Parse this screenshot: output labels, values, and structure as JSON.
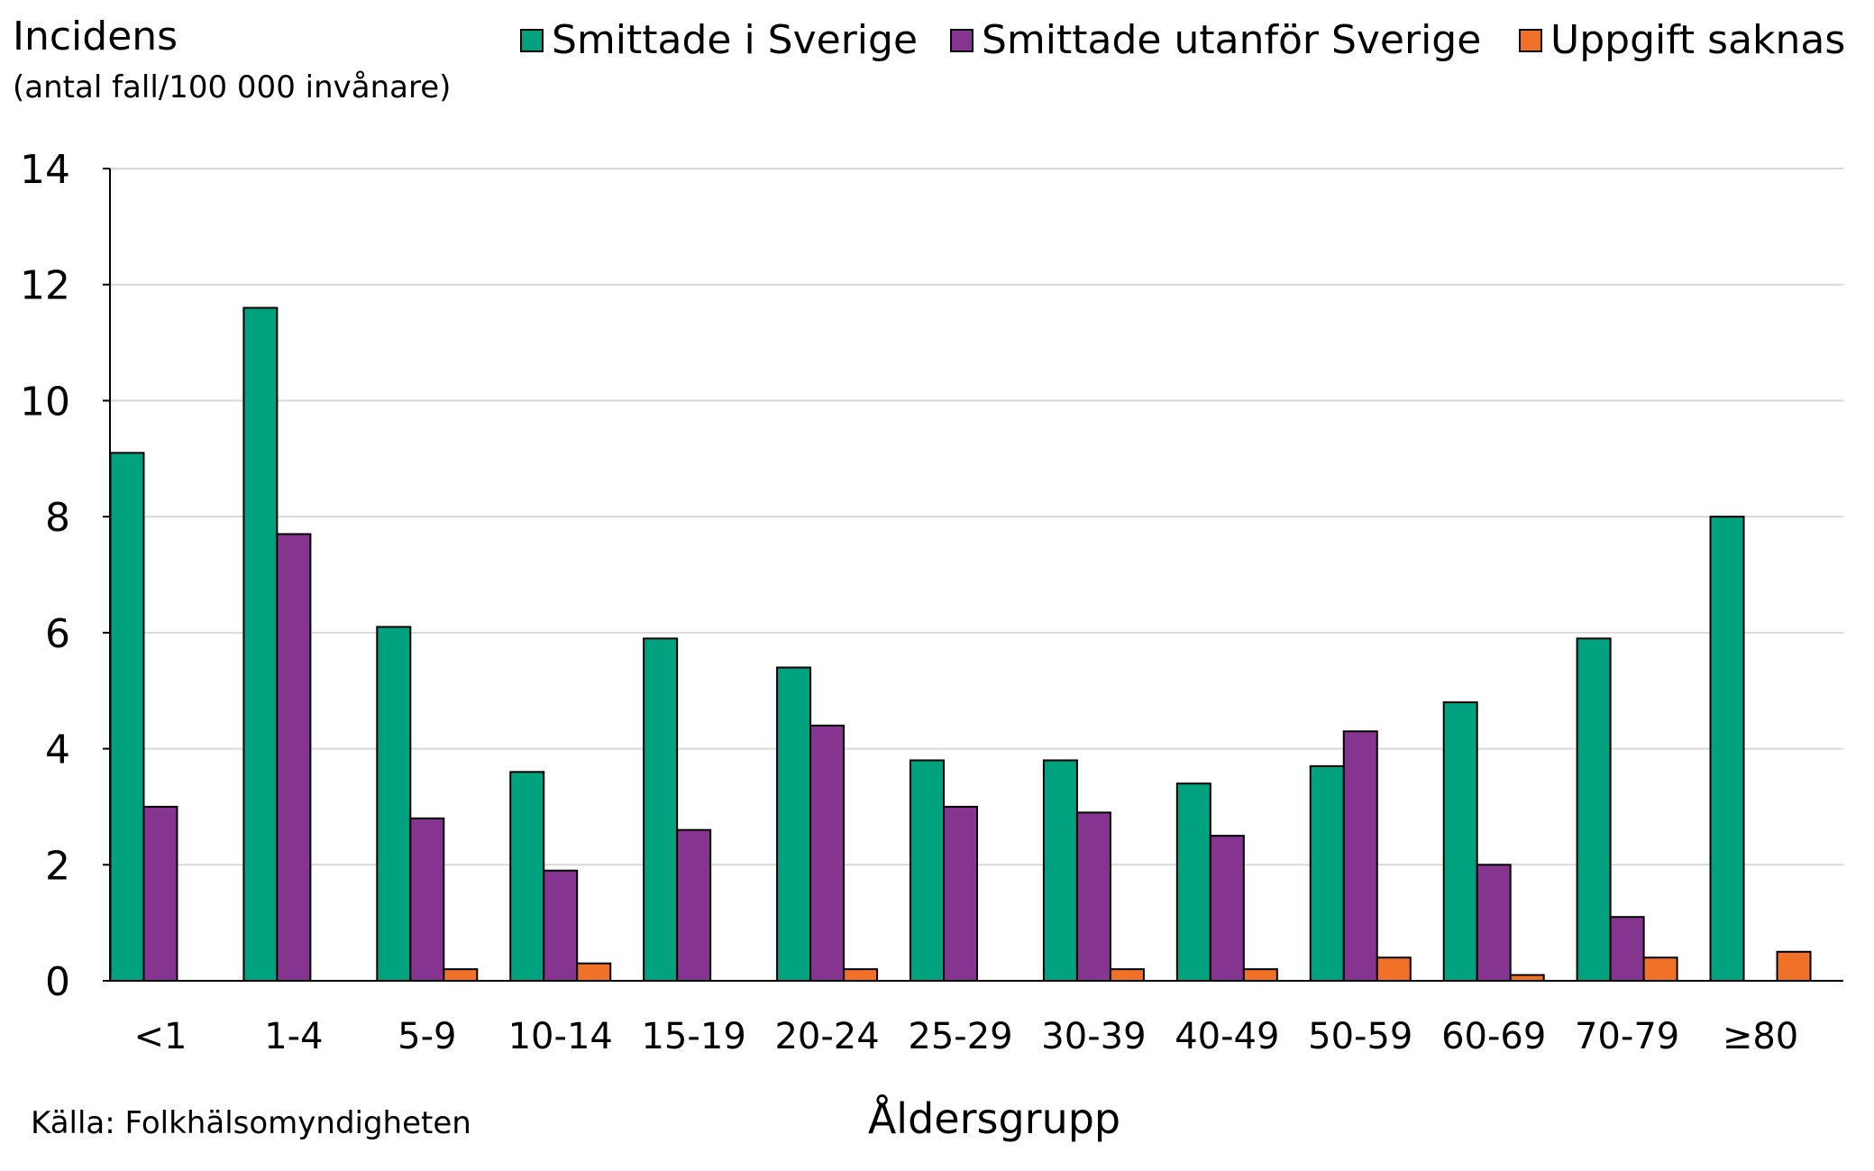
{
  "chart_data": {
    "type": "bar",
    "title": "",
    "ylabel": "Incidens",
    "ylabel_sub": "(antal fall/100 000 invånare)",
    "xlabel": "Åldersgrupp",
    "source": "Källa: Folkhälsomyndigheten",
    "ylim": [
      0,
      14
    ],
    "yticks": [
      0,
      2,
      4,
      6,
      8,
      10,
      12,
      14
    ],
    "grid": true,
    "legend_position": "top-right",
    "categories": [
      "<1",
      "1-4",
      "5-9",
      "10-14",
      "15-19",
      "20-24",
      "25-29",
      "30-39",
      "40-49",
      "50-59",
      "60-69",
      "70-79",
      "≥80"
    ],
    "series": [
      {
        "name": "Smittade i Sverige",
        "color": "#00A17F",
        "values": [
          9.1,
          11.6,
          6.1,
          3.6,
          5.9,
          5.4,
          3.8,
          3.8,
          3.4,
          3.7,
          4.8,
          5.9,
          8.0
        ]
      },
      {
        "name": "Smittade utanför Sverige",
        "color": "#85358F",
        "values": [
          3.0,
          7.7,
          2.8,
          1.9,
          2.6,
          4.4,
          3.0,
          2.9,
          2.5,
          4.3,
          2.0,
          1.1,
          0
        ]
      },
      {
        "name": "Uppgift saknas",
        "color": "#F07127",
        "values": [
          0,
          0,
          0.2,
          0.3,
          0,
          0.2,
          0,
          0.2,
          0.2,
          0.4,
          0.1,
          0.4,
          0.5
        ]
      }
    ]
  }
}
